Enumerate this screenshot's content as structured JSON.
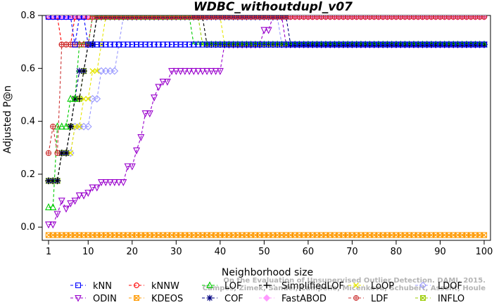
{
  "chart_data": {
    "type": "line",
    "title": "WDBC_withoutdupl_v07",
    "xlabel": "Neighborhood size",
    "ylabel": "Adjusted P@n",
    "xlim": [
      1,
      100
    ],
    "ylim": [
      -0.05,
      0.8
    ],
    "x_ticks": [
      1,
      10,
      20,
      30,
      40,
      50,
      60,
      70,
      80,
      90,
      100
    ],
    "y_ticks": [
      0.0,
      0.2,
      0.4,
      0.6,
      0.8
    ],
    "y_tick_labels": [
      "0.0",
      "0.2",
      "0.4",
      "0.6",
      "0.8"
    ],
    "grid": false,
    "legend_placement": "bottom",
    "watermark": [
      "Campos, Zimek, Sander, Campello, Micenková, Schubert, Assent, Houle",
      "On the Evaluation of Unsupervised Outlier Detection. DAMI, 2015."
    ],
    "series": [
      {
        "name": "kNN",
        "color": "#0000ff",
        "marker": "square",
        "points": [
          [
            1,
            0.795
          ],
          [
            4,
            0.795
          ],
          [
            5,
            0.795
          ],
          [
            6,
            0.795
          ],
          [
            7,
            0.69
          ],
          [
            8,
            0.795
          ],
          [
            9,
            0.795
          ],
          [
            10,
            0.69
          ],
          [
            11,
            0.69
          ],
          [
            100,
            0.69
          ]
        ]
      },
      {
        "name": "kNNW",
        "color": "#ff0000",
        "marker": "circle",
        "points": [
          [
            1,
            0.795
          ],
          [
            3,
            0.795
          ],
          [
            4,
            0.69
          ],
          [
            5,
            0.69
          ],
          [
            6,
            0.69
          ],
          [
            7,
            0.795
          ],
          [
            100,
            0.795
          ]
        ]
      },
      {
        "name": "LOF",
        "color": "#00cc00",
        "marker": "triangle-up",
        "points": [
          [
            1,
            0.075
          ],
          [
            2,
            0.075
          ],
          [
            3,
            0.38
          ],
          [
            4,
            0.38
          ],
          [
            5,
            0.38
          ],
          [
            6,
            0.485
          ],
          [
            7,
            0.485
          ],
          [
            8,
            0.69
          ],
          [
            9,
            0.69
          ],
          [
            10,
            0.69
          ],
          [
            11,
            0.795
          ],
          [
            33,
            0.795
          ],
          [
            34,
            0.69
          ],
          [
            100,
            0.69
          ]
        ]
      },
      {
        "name": "SimplifiedLOF",
        "color": "#000000",
        "marker": "plus",
        "points": [
          [
            1,
            0.175
          ],
          [
            2,
            0.175
          ],
          [
            3,
            0.175
          ],
          [
            4,
            0.28
          ],
          [
            5,
            0.28
          ],
          [
            6,
            0.38
          ],
          [
            7,
            0.485
          ],
          [
            8,
            0.485
          ],
          [
            9,
            0.59
          ],
          [
            10,
            0.69
          ],
          [
            11,
            0.69
          ],
          [
            12,
            0.795
          ],
          [
            36,
            0.795
          ],
          [
            37,
            0.69
          ],
          [
            100,
            0.69
          ]
        ]
      },
      {
        "name": "LoOP",
        "color": "#e6e600",
        "marker": "x",
        "points": [
          [
            1,
            0.175
          ],
          [
            3,
            0.175
          ],
          [
            4,
            0.28
          ],
          [
            5,
            0.28
          ],
          [
            6,
            0.28
          ],
          [
            7,
            0.38
          ],
          [
            8,
            0.38
          ],
          [
            9,
            0.485
          ],
          [
            10,
            0.485
          ],
          [
            11,
            0.59
          ],
          [
            12,
            0.59
          ],
          [
            13,
            0.69
          ],
          [
            14,
            0.795
          ],
          [
            40,
            0.795
          ],
          [
            41,
            0.69
          ],
          [
            100,
            0.69
          ]
        ]
      },
      {
        "name": "LDOF",
        "color": "#9999ff",
        "marker": "diamond",
        "points": [
          [
            1,
            0.175
          ],
          [
            3,
            0.175
          ],
          [
            4,
            0.28
          ],
          [
            5,
            0.28
          ],
          [
            6,
            0.28
          ],
          [
            7,
            0.38
          ],
          [
            8,
            0.38
          ],
          [
            9,
            0.38
          ],
          [
            10,
            0.38
          ],
          [
            11,
            0.485
          ],
          [
            12,
            0.485
          ],
          [
            13,
            0.59
          ],
          [
            14,
            0.59
          ],
          [
            15,
            0.59
          ],
          [
            16,
            0.59
          ],
          [
            17,
            0.69
          ],
          [
            18,
            0.795
          ],
          [
            53,
            0.795
          ],
          [
            54,
            0.69
          ],
          [
            100,
            0.69
          ]
        ]
      },
      {
        "name": "ODIN",
        "color": "#9900cc",
        "marker": "triangle-down",
        "points": [
          [
            1,
            0.01
          ],
          [
            2,
            0.01
          ],
          [
            3,
            0.05
          ],
          [
            4,
            0.1
          ],
          [
            5,
            0.07
          ],
          [
            6,
            0.09
          ],
          [
            7,
            0.1
          ],
          [
            8,
            0.12
          ],
          [
            9,
            0.12
          ],
          [
            10,
            0.13
          ],
          [
            11,
            0.15
          ],
          [
            12,
            0.15
          ],
          [
            13,
            0.17
          ],
          [
            14,
            0.17
          ],
          [
            15,
            0.17
          ],
          [
            16,
            0.17
          ],
          [
            17,
            0.17
          ],
          [
            18,
            0.17
          ],
          [
            19,
            0.23
          ],
          [
            20,
            0.23
          ],
          [
            21,
            0.29
          ],
          [
            22,
            0.34
          ],
          [
            23,
            0.43
          ],
          [
            24,
            0.43
          ],
          [
            25,
            0.49
          ],
          [
            26,
            0.53
          ],
          [
            27,
            0.55
          ],
          [
            28,
            0.55
          ],
          [
            29,
            0.59
          ],
          [
            30,
            0.59
          ],
          [
            31,
            0.59
          ],
          [
            32,
            0.59
          ],
          [
            33,
            0.59
          ],
          [
            34,
            0.59
          ],
          [
            35,
            0.59
          ],
          [
            36,
            0.59
          ],
          [
            37,
            0.59
          ],
          [
            38,
            0.59
          ],
          [
            39,
            0.59
          ],
          [
            41,
            0.69
          ],
          [
            49,
            0.69
          ],
          [
            50,
            0.745
          ],
          [
            51,
            0.745
          ],
          [
            52,
            0.795
          ],
          [
            53,
            0.795
          ],
          [
            54,
            0.795
          ],
          [
            55,
            0.69
          ],
          [
            100,
            0.69
          ]
        ]
      },
      {
        "name": "KDEOS",
        "color": "#ff9900",
        "marker": "square-x",
        "points": [
          [
            1,
            -0.03
          ],
          [
            100,
            -0.03
          ]
        ]
      },
      {
        "name": "COF",
        "color": "#000080",
        "marker": "star",
        "points": [
          [
            1,
            0.175
          ],
          [
            3,
            0.175
          ],
          [
            4,
            0.28
          ],
          [
            5,
            0.28
          ],
          [
            6,
            0.38
          ],
          [
            7,
            0.485
          ],
          [
            8,
            0.59
          ],
          [
            9,
            0.59
          ],
          [
            10,
            0.69
          ],
          [
            11,
            0.69
          ],
          [
            12,
            0.795
          ],
          [
            55,
            0.795
          ],
          [
            56,
            0.69
          ],
          [
            100,
            0.69
          ]
        ]
      },
      {
        "name": "FastABOD",
        "color": "#ff99ff",
        "marker": "diamond-filled",
        "points": [
          [
            1,
            0.795
          ],
          [
            100,
            0.795
          ]
        ]
      },
      {
        "name": "LDF",
        "color": "#cc3333",
        "marker": "circle-plus",
        "points": [
          [
            1,
            0.28
          ],
          [
            2,
            0.38
          ],
          [
            3,
            0.28
          ],
          [
            4,
            0.69
          ],
          [
            5,
            0.69
          ],
          [
            6,
            0.69
          ],
          [
            7,
            0.69
          ],
          [
            8,
            0.69
          ],
          [
            9,
            0.69
          ],
          [
            10,
            0.69
          ],
          [
            11,
            0.795
          ],
          [
            100,
            0.795
          ]
        ]
      },
      {
        "name": "INFLO",
        "color": "#99cc00",
        "marker": "square-x",
        "points": [
          [
            1,
            0.175
          ],
          [
            2,
            0.175
          ],
          [
            3,
            0.175
          ],
          [
            4,
            0.28
          ],
          [
            5,
            0.28
          ],
          [
            6,
            0.38
          ],
          [
            7,
            0.485
          ],
          [
            8,
            0.485
          ],
          [
            9,
            0.59
          ],
          [
            10,
            0.69
          ],
          [
            11,
            0.69
          ],
          [
            12,
            0.795
          ],
          [
            35,
            0.795
          ],
          [
            36,
            0.69
          ],
          [
            100,
            0.69
          ]
        ]
      }
    ],
    "legend_order": [
      [
        "kNN",
        "kNNW",
        "LOF",
        "SimplifiedLOF",
        "LoOP",
        "LDOF"
      ],
      [
        "ODIN",
        "KDEOS",
        "COF",
        "FastABOD",
        "LDF",
        "INFLO"
      ]
    ]
  }
}
